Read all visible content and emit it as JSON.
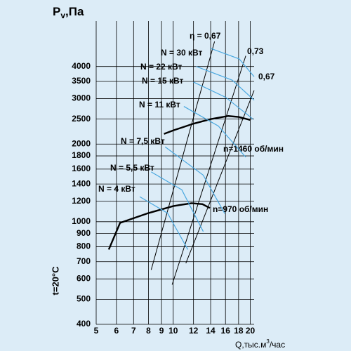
{
  "chart_data": {
    "type": "line",
    "ylabel_main": "P",
    "ylabel_sub": "v",
    "ylabel_unit": ",Па",
    "xlabel_main": "Q,тыс.м",
    "xlabel_sup": "3",
    "xlabel_unit": "/час",
    "side_note": "t=20°C",
    "log_x": true,
    "log_y": true,
    "grid": true,
    "xlim": [
      5,
      20.7
    ],
    "ylim": [
      400,
      6000
    ],
    "xticks": [
      5,
      6,
      7,
      8,
      9,
      10,
      12,
      14,
      16,
      18,
      20
    ],
    "yticks": [
      400,
      500,
      600,
      700,
      800,
      900,
      1000,
      1200,
      1400,
      1600,
      1800,
      2000,
      2500,
      3000,
      3500,
      4000
    ],
    "series": [
      {
        "name": "n=1460 об/мин",
        "color": "#000000",
        "x": [
          9.2,
          10,
          12,
          14,
          16.4,
          18,
          20
        ],
        "values": [
          2190,
          2260,
          2400,
          2500,
          2570,
          2550,
          2480
        ]
      },
      {
        "name": "n=970 об/мин",
        "color": "#000000",
        "x": [
          5.6,
          6.2,
          8,
          10,
          11.8,
          13,
          13.9
        ],
        "values": [
          780,
          990,
          1080,
          1150,
          1180,
          1170,
          1130
        ]
      },
      {
        "name": "η = 0,67",
        "color": "#000000",
        "x": [
          8.2,
          14.5
        ],
        "values": [
          650,
          5000
        ]
      },
      {
        "name": "0,73",
        "color": "#000000",
        "x": [
          9.9,
          19.2
        ],
        "values": [
          570,
          4400
        ]
      },
      {
        "name": "0,67",
        "color": "#000000",
        "x": [
          11.2,
          20.7
        ],
        "values": [
          690,
          3230
        ]
      },
      {
        "name": "N = 4 кВт",
        "color": "#4aa8e0",
        "x": [
          7.4,
          9.5,
          11.4
        ],
        "values": [
          1250,
          1080,
          780
        ]
      },
      {
        "name": "N = 5,5 кВт",
        "color": "#4aa8e0",
        "x": [
          8.2,
          10.8,
          13.1
        ],
        "values": [
          1560,
          1330,
          916
        ]
      },
      {
        "name": "N = 7,5 кВт",
        "color": "#4aa8e0",
        "x": [
          9.3,
          13.1,
          15.9
        ],
        "values": [
          1950,
          1515,
          1075
        ]
      },
      {
        "name": "N = 11 кВт",
        "color": "#4aa8e0",
        "x": [
          11,
          15,
          19.2
        ],
        "values": [
          2800,
          2350,
          1780
        ]
      },
      {
        "name": "N = 15 кВт",
        "color": "#4aa8e0",
        "x": [
          12,
          16,
          20.5
        ],
        "values": [
          3480,
          3040,
          2500
        ]
      },
      {
        "name": "N = 22 кВт",
        "color": "#4aa8e0",
        "x": [
          12.3,
          17,
          20.7
        ],
        "values": [
          4000,
          3540,
          2960
        ]
      },
      {
        "name": "N = 30 кВт",
        "color": "#4aa8e0",
        "x": [
          14,
          18.1,
          20.7
        ],
        "values": [
          4700,
          4280,
          3650
        ]
      }
    ]
  }
}
